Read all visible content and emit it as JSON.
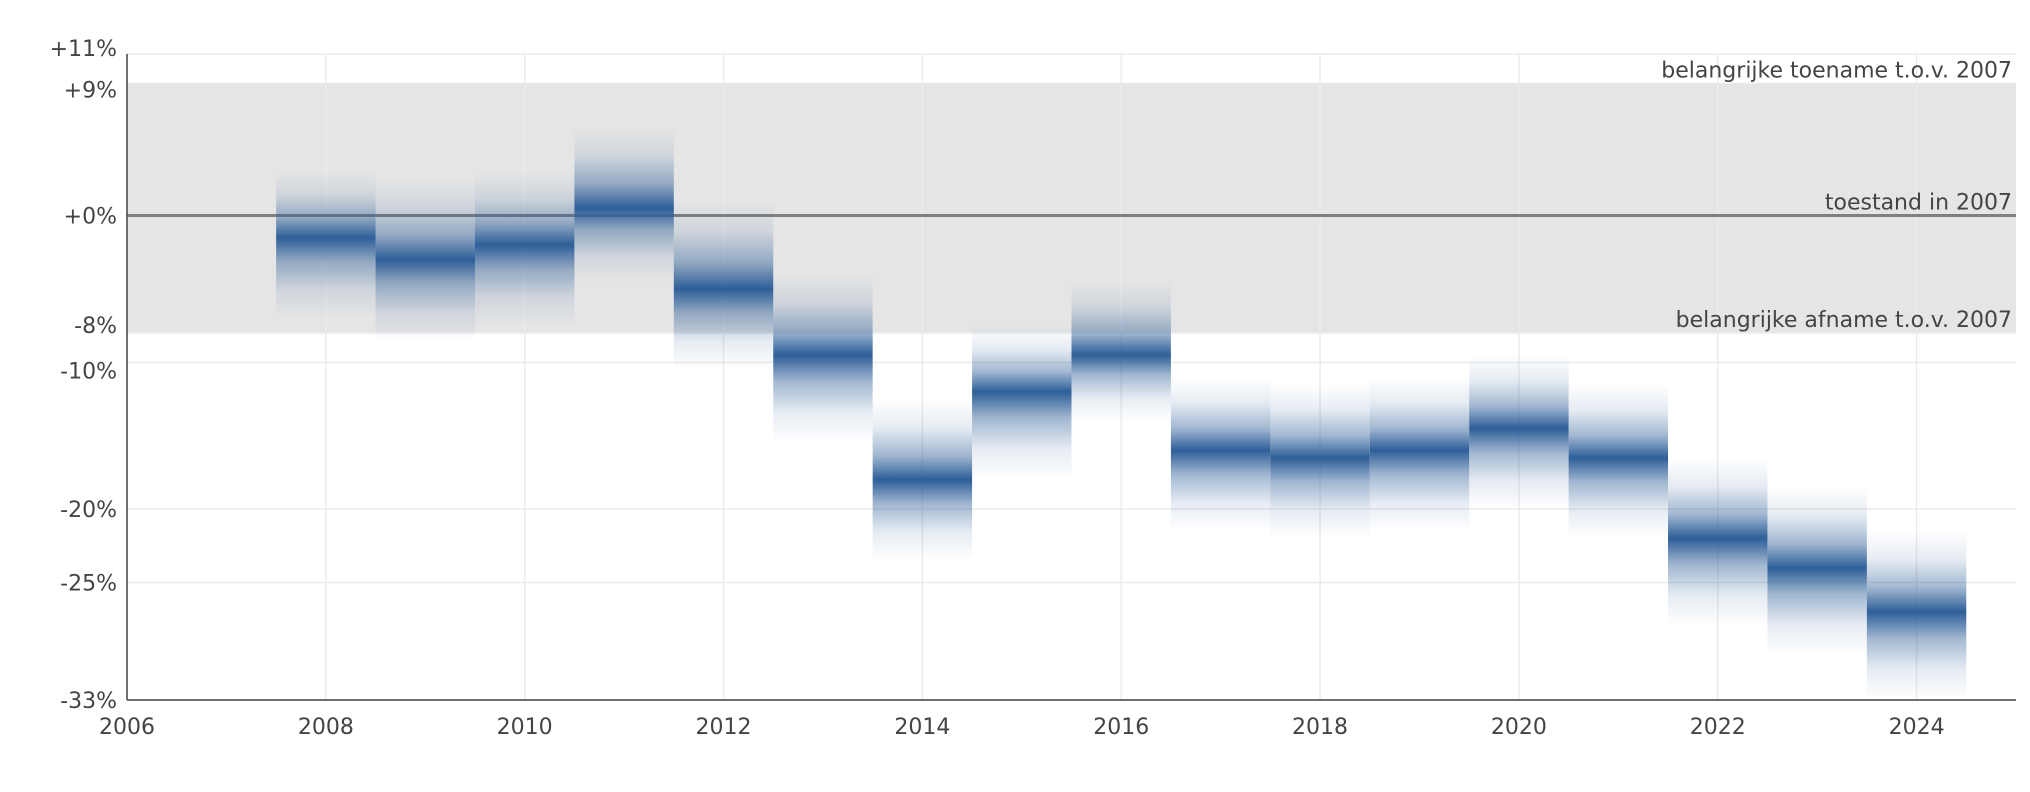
{
  "chart_data": {
    "type": "band-estimate",
    "title": "",
    "xlabel": "",
    "ylabel": "",
    "xlim": [
      2006,
      2025
    ],
    "ylim": [
      -33,
      11
    ],
    "x_ticks": [
      2006,
      2008,
      2010,
      2012,
      2014,
      2016,
      2018,
      2020,
      2022,
      2024
    ],
    "y_ticks": [
      {
        "value": 11,
        "label": "+11%"
      },
      {
        "value": 9,
        "label": "+9%"
      },
      {
        "value": 0,
        "label": "+0%"
      },
      {
        "value": -8,
        "label": "-8%"
      },
      {
        "value": -10,
        "label": "-10%"
      },
      {
        "value": -20,
        "label": "-20%"
      },
      {
        "value": -25,
        "label": "-25%"
      },
      {
        "value": -33,
        "label": "-33%"
      }
    ],
    "reference_band": {
      "lower": -8,
      "upper": 9,
      "color": "#e5e5e5"
    },
    "reference_line": {
      "value": 0,
      "color": "#808080"
    },
    "annotations": [
      {
        "text": "belangrijke toename t.o.v. 2007",
        "y": 9
      },
      {
        "text": "toestand in 2007",
        "y": 0
      },
      {
        "text": "belangrijke afname t.o.v. 2007",
        "y": -8
      }
    ],
    "series_color": "#2e5f98",
    "series": [
      {
        "year": 2008,
        "estimate": -1.5,
        "lower": -7,
        "upper": 3
      },
      {
        "year": 2009,
        "estimate": -3,
        "lower": -8.5,
        "upper": 2.5
      },
      {
        "year": 2010,
        "estimate": -2,
        "lower": -7.5,
        "upper": 3
      },
      {
        "year": 2011,
        "estimate": 0.5,
        "lower": -4.5,
        "upper": 6
      },
      {
        "year": 2012,
        "estimate": -5,
        "lower": -10.5,
        "upper": 1
      },
      {
        "year": 2013,
        "estimate": -9.5,
        "lower": -15.5,
        "upper": -4
      },
      {
        "year": 2014,
        "estimate": -18,
        "lower": -23.5,
        "upper": -12.5
      },
      {
        "year": 2015,
        "estimate": -12,
        "lower": -18,
        "upper": -7.5
      },
      {
        "year": 2016,
        "estimate": -9.5,
        "lower": -14,
        "upper": -4.5
      },
      {
        "year": 2017,
        "estimate": -16,
        "lower": -21.5,
        "upper": -11
      },
      {
        "year": 2018,
        "estimate": -16.5,
        "lower": -22,
        "upper": -11.5
      },
      {
        "year": 2019,
        "estimate": -16,
        "lower": -21.5,
        "upper": -11
      },
      {
        "year": 2020,
        "estimate": -14.5,
        "lower": -20,
        "upper": -9.5
      },
      {
        "year": 2021,
        "estimate": -16.5,
        "lower": -22,
        "upper": -11.5
      },
      {
        "year": 2022,
        "estimate": -22,
        "lower": -28,
        "upper": -16.5
      },
      {
        "year": 2023,
        "estimate": -24,
        "lower": -30,
        "upper": -18.5
      },
      {
        "year": 2024,
        "estimate": -27,
        "lower": -33,
        "upper": -21.5
      }
    ],
    "grid": true,
    "legend": false
  }
}
